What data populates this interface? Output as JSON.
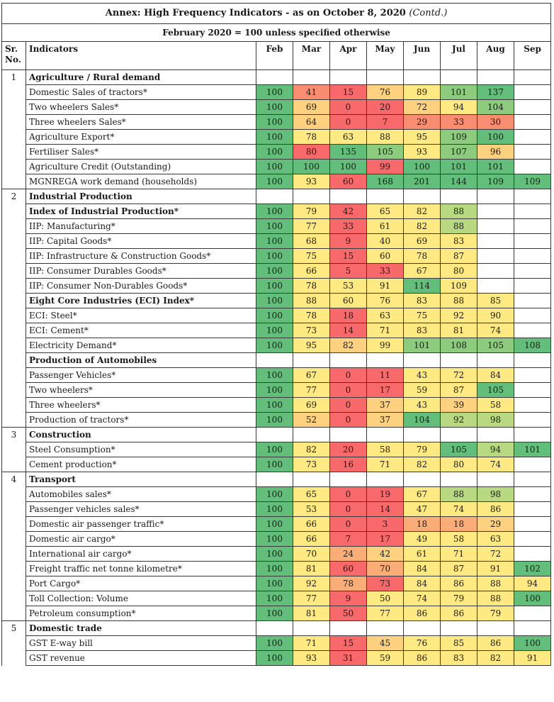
{
  "title": "Annex: High Frequency Indicators - as on October 8, 2020",
  "title_suffix": "(Contd.)",
  "subtitle": "February 2020 = 100 unless specified otherwise",
  "headers": {
    "sr_no": "Sr. No.",
    "indicators": "Indicators",
    "months": [
      "Feb",
      "Mar",
      "Apr",
      "May",
      "Jun",
      "Jul",
      "Aug",
      "Sep"
    ]
  },
  "colors": {
    "dark_green": "#63be7b",
    "green": "#8dcb7f",
    "light_green": "#b8d982",
    "yellow": "#fee983",
    "light_orange": "#fdd17f",
    "orange": "#fbad78",
    "dark_orange": "#f98d72",
    "red": "#f8696b"
  },
  "rows": [
    {
      "kind": "section",
      "sr": "1",
      "label": "Agriculture / Rural demand"
    },
    {
      "kind": "data",
      "label": "Domestic Sales of tractors*",
      "values": [
        "100",
        "41",
        "15",
        "76",
        "89",
        "101",
        "137",
        ""
      ]
    },
    {
      "kind": "data",
      "label": "Two wheelers Sales*",
      "values": [
        "100",
        "69",
        "0",
        "20",
        "72",
        "94",
        "104",
        ""
      ]
    },
    {
      "kind": "data",
      "label": "Three wheelers Sales*",
      "values": [
        "100",
        "64",
        "0",
        "7",
        "29",
        "33",
        "30",
        ""
      ]
    },
    {
      "kind": "data",
      "label": "Agriculture Export*",
      "values": [
        "100",
        "78",
        "63",
        "88",
        "95",
        "109",
        "100",
        ""
      ]
    },
    {
      "kind": "data",
      "label": "Fertiliser Sales*",
      "values": [
        "100",
        "80",
        "135",
        "105",
        "93",
        "107",
        "96",
        ""
      ]
    },
    {
      "kind": "data",
      "label": "Agriculture Credit (Outstanding)",
      "values": [
        "100",
        "100",
        "100",
        "99",
        "100",
        "101",
        "101",
        ""
      ]
    },
    {
      "kind": "data",
      "label": "MGNREGA work demand (households)",
      "values": [
        "100",
        "93",
        "60",
        "168",
        "201",
        "144",
        "109",
        "109"
      ]
    },
    {
      "kind": "section",
      "sr": "2",
      "label": "Industrial Production"
    },
    {
      "kind": "bolddata",
      "label": "Index of Industrial Production*",
      "values": [
        "100",
        "79",
        "42",
        "65",
        "82",
        "88",
        "",
        ""
      ]
    },
    {
      "kind": "data",
      "label": "IIP: Manufacturing*",
      "values": [
        "100",
        "77",
        "33",
        "61",
        "82",
        "88",
        "",
        ""
      ]
    },
    {
      "kind": "data",
      "label": "IIP: Capital Goods*",
      "values": [
        "100",
        "68",
        "9",
        "40",
        "69",
        "83",
        "",
        ""
      ]
    },
    {
      "kind": "data",
      "label": "IIP: Infrastructure & Construction Goods*",
      "values": [
        "100",
        "75",
        "15",
        "60",
        "78",
        "87",
        "",
        ""
      ]
    },
    {
      "kind": "data",
      "label": "IIP: Consumer Durables Goods*",
      "values": [
        "100",
        "66",
        "5",
        "33",
        "67",
        "80",
        "",
        ""
      ]
    },
    {
      "kind": "data",
      "label": "IIP: Consumer Non-Durables Goods*",
      "values": [
        "100",
        "78",
        "53",
        "91",
        "114",
        "109",
        "",
        ""
      ]
    },
    {
      "kind": "bolddata",
      "label": "Eight Core Industries (ECI) Index*",
      "values": [
        "100",
        "88",
        "60",
        "76",
        "83",
        "88",
        "85",
        ""
      ]
    },
    {
      "kind": "data",
      "label": "ECI: Steel*",
      "values": [
        "100",
        "78",
        "18",
        "63",
        "75",
        "92",
        "90",
        ""
      ]
    },
    {
      "kind": "data",
      "label": "ECI: Cement*",
      "values": [
        "100",
        "73",
        "14",
        "71",
        "83",
        "81",
        "74",
        ""
      ]
    },
    {
      "kind": "data",
      "label": "Electricity Demand*",
      "values": [
        "100",
        "95",
        "82",
        "99",
        "101",
        "108",
        "105",
        "108"
      ]
    },
    {
      "kind": "subhead",
      "label": "Production of Automobiles"
    },
    {
      "kind": "data",
      "label": "Passenger Vehicles*",
      "values": [
        "100",
        "67",
        "0",
        "11",
        "43",
        "72",
        "84",
        ""
      ]
    },
    {
      "kind": "data",
      "label": "Two wheelers*",
      "values": [
        "100",
        "77",
        "0",
        "17",
        "59",
        "87",
        "105",
        ""
      ]
    },
    {
      "kind": "data",
      "label": "Three wheelers*",
      "values": [
        "100",
        "69",
        "0",
        "37",
        "43",
        "39",
        "58",
        ""
      ]
    },
    {
      "kind": "data",
      "label": "Production of tractors*",
      "values": [
        "100",
        "52",
        "0",
        "37",
        "104",
        "92",
        "98",
        ""
      ]
    },
    {
      "kind": "section",
      "sr": "3",
      "label": "Construction"
    },
    {
      "kind": "data",
      "label": "Steel Consumption*",
      "values": [
        "100",
        "82",
        "20",
        "58",
        "79",
        "105",
        "94",
        "101"
      ]
    },
    {
      "kind": "data",
      "label": "Cement production*",
      "values": [
        "100",
        "73",
        "16",
        "71",
        "82",
        "80",
        "74",
        ""
      ]
    },
    {
      "kind": "section",
      "sr": "4",
      "label": "Transport"
    },
    {
      "kind": "data",
      "label": "Automobiles sales*",
      "values": [
        "100",
        "65",
        "0",
        "19",
        "67",
        "88",
        "98",
        ""
      ]
    },
    {
      "kind": "data",
      "label": "Passenger vehicles sales*",
      "values": [
        "100",
        "53",
        "0",
        "14",
        "47",
        "74",
        "86",
        ""
      ]
    },
    {
      "kind": "data",
      "label": "Domestic air passenger traffic*",
      "values": [
        "100",
        "66",
        "0",
        "3",
        "18",
        "18",
        "29",
        ""
      ]
    },
    {
      "kind": "data",
      "label": "Domestic air cargo*",
      "values": [
        "100",
        "66",
        "7",
        "17",
        "49",
        "58",
        "63",
        ""
      ]
    },
    {
      "kind": "data",
      "label": "International air cargo*",
      "values": [
        "100",
        "70",
        "24",
        "42",
        "61",
        "71",
        "72",
        ""
      ]
    },
    {
      "kind": "data",
      "label": "Freight traffic net tonne kilometre*",
      "values": [
        "100",
        "81",
        "60",
        "70",
        "84",
        "87",
        "91",
        "102"
      ]
    },
    {
      "kind": "data",
      "label": "Port Cargo*",
      "values": [
        "100",
        "92",
        "78",
        "73",
        "84",
        "86",
        "88",
        "94"
      ]
    },
    {
      "kind": "data",
      "label": "Toll Collection: Volume",
      "values": [
        "100",
        "77",
        "9",
        "50",
        "74",
        "79",
        "88",
        "100"
      ]
    },
    {
      "kind": "data",
      "label": "Petroleum consumption*",
      "values": [
        "100",
        "81",
        "50",
        "77",
        "86",
        "86",
        "79",
        ""
      ]
    },
    {
      "kind": "section",
      "sr": "5",
      "label": "Domestic trade"
    },
    {
      "kind": "data",
      "label": "GST E-way bill",
      "values": [
        "100",
        "71",
        "15",
        "45",
        "76",
        "85",
        "86",
        "100"
      ]
    },
    {
      "kind": "data",
      "label": "GST revenue",
      "values": [
        "100",
        "93",
        "31",
        "59",
        "86",
        "83",
        "82",
        "91"
      ]
    }
  ],
  "cell_colors": [
    null,
    [
      "dark_green",
      "dark_orange",
      "red",
      "light_orange",
      "yellow",
      "green",
      "dark_green",
      null
    ],
    [
      "dark_green",
      "light_orange",
      "red",
      "red",
      "light_orange",
      "yellow",
      "green",
      null
    ],
    [
      "dark_green",
      "light_orange",
      "red",
      "red",
      "dark_orange",
      "dark_orange",
      "dark_orange",
      null
    ],
    [
      "dark_green",
      "yellow",
      "yellow",
      "yellow",
      "yellow",
      "green",
      "dark_green",
      null
    ],
    [
      "dark_green",
      "red",
      "dark_green",
      "green",
      "yellow",
      "green",
      "light_orange",
      null
    ],
    [
      "dark_green",
      "dark_green",
      "dark_green",
      "red",
      "dark_green",
      "dark_green",
      "dark_green",
      null
    ],
    [
      "dark_green",
      "yellow",
      "red",
      "dark_green",
      "dark_green",
      "dark_green",
      "dark_green",
      "dark_green"
    ],
    null,
    [
      "dark_green",
      "yellow",
      "red",
      "yellow",
      "yellow",
      "light_green",
      null,
      null
    ],
    [
      "dark_green",
      "yellow",
      "red",
      "yellow",
      "yellow",
      "light_green",
      null,
      null
    ],
    [
      "dark_green",
      "yellow",
      "red",
      "yellow",
      "yellow",
      "yellow",
      null,
      null
    ],
    [
      "dark_green",
      "yellow",
      "red",
      "yellow",
      "yellow",
      "yellow",
      null,
      null
    ],
    [
      "dark_green",
      "yellow",
      "red",
      "red",
      "yellow",
      "yellow",
      null,
      null
    ],
    [
      "dark_green",
      "yellow",
      "yellow",
      "yellow",
      "dark_green",
      "yellow",
      null,
      null
    ],
    [
      "dark_green",
      "yellow",
      "yellow",
      "yellow",
      "yellow",
      "yellow",
      "yellow",
      null
    ],
    [
      "dark_green",
      "yellow",
      "red",
      "yellow",
      "yellow",
      "yellow",
      "yellow",
      null
    ],
    [
      "dark_green",
      "yellow",
      "red",
      "yellow",
      "yellow",
      "yellow",
      "yellow",
      null
    ],
    [
      "dark_green",
      "yellow",
      "light_orange",
      "yellow",
      "green",
      "green",
      "green",
      "dark_green"
    ],
    null,
    [
      "dark_green",
      "yellow",
      "red",
      "red",
      "yellow",
      "yellow",
      "yellow",
      null
    ],
    [
      "dark_green",
      "yellow",
      "red",
      "red",
      "yellow",
      "yellow",
      "dark_green",
      null
    ],
    [
      "dark_green",
      "yellow",
      "red",
      "light_orange",
      "yellow",
      "light_orange",
      "yellow",
      null
    ],
    [
      "dark_green",
      "light_orange",
      "red",
      "light_orange",
      "dark_green",
      "light_green",
      "light_green",
      null
    ],
    null,
    [
      "dark_green",
      "yellow",
      "red",
      "yellow",
      "yellow",
      "dark_green",
      "light_green",
      "dark_green"
    ],
    [
      "dark_green",
      "yellow",
      "red",
      "yellow",
      "yellow",
      "yellow",
      "yellow",
      null
    ],
    null,
    [
      "dark_green",
      "yellow",
      "red",
      "red",
      "yellow",
      "light_green",
      "light_green",
      null
    ],
    [
      "dark_green",
      "yellow",
      "red",
      "red",
      "yellow",
      "yellow",
      "yellow",
      null
    ],
    [
      "dark_green",
      "yellow",
      "red",
      "red",
      "orange",
      "orange",
      "light_orange",
      null
    ],
    [
      "dark_green",
      "yellow",
      "red",
      "red",
      "yellow",
      "yellow",
      "yellow",
      null
    ],
    [
      "dark_green",
      "yellow",
      "orange",
      "light_orange",
      "yellow",
      "yellow",
      "yellow",
      null
    ],
    [
      "dark_green",
      "yellow",
      "red",
      "orange",
      "yellow",
      "yellow",
      "yellow",
      "dark_green"
    ],
    [
      "dark_green",
      "yellow",
      "orange",
      "red",
      "yellow",
      "yellow",
      "yellow",
      "yellow"
    ],
    [
      "dark_green",
      "yellow",
      "red",
      "yellow",
      "yellow",
      "yellow",
      "yellow",
      "dark_green"
    ],
    [
      "dark_green",
      "yellow",
      "red",
      "yellow",
      "yellow",
      "yellow",
      "yellow",
      null
    ],
    null,
    [
      "dark_green",
      "yellow",
      "red",
      "light_orange",
      "yellow",
      "yellow",
      "yellow",
      "dark_green"
    ],
    [
      "dark_green",
      "yellow",
      "red",
      "yellow",
      "yellow",
      "yellow",
      "yellow",
      "yellow"
    ]
  ]
}
